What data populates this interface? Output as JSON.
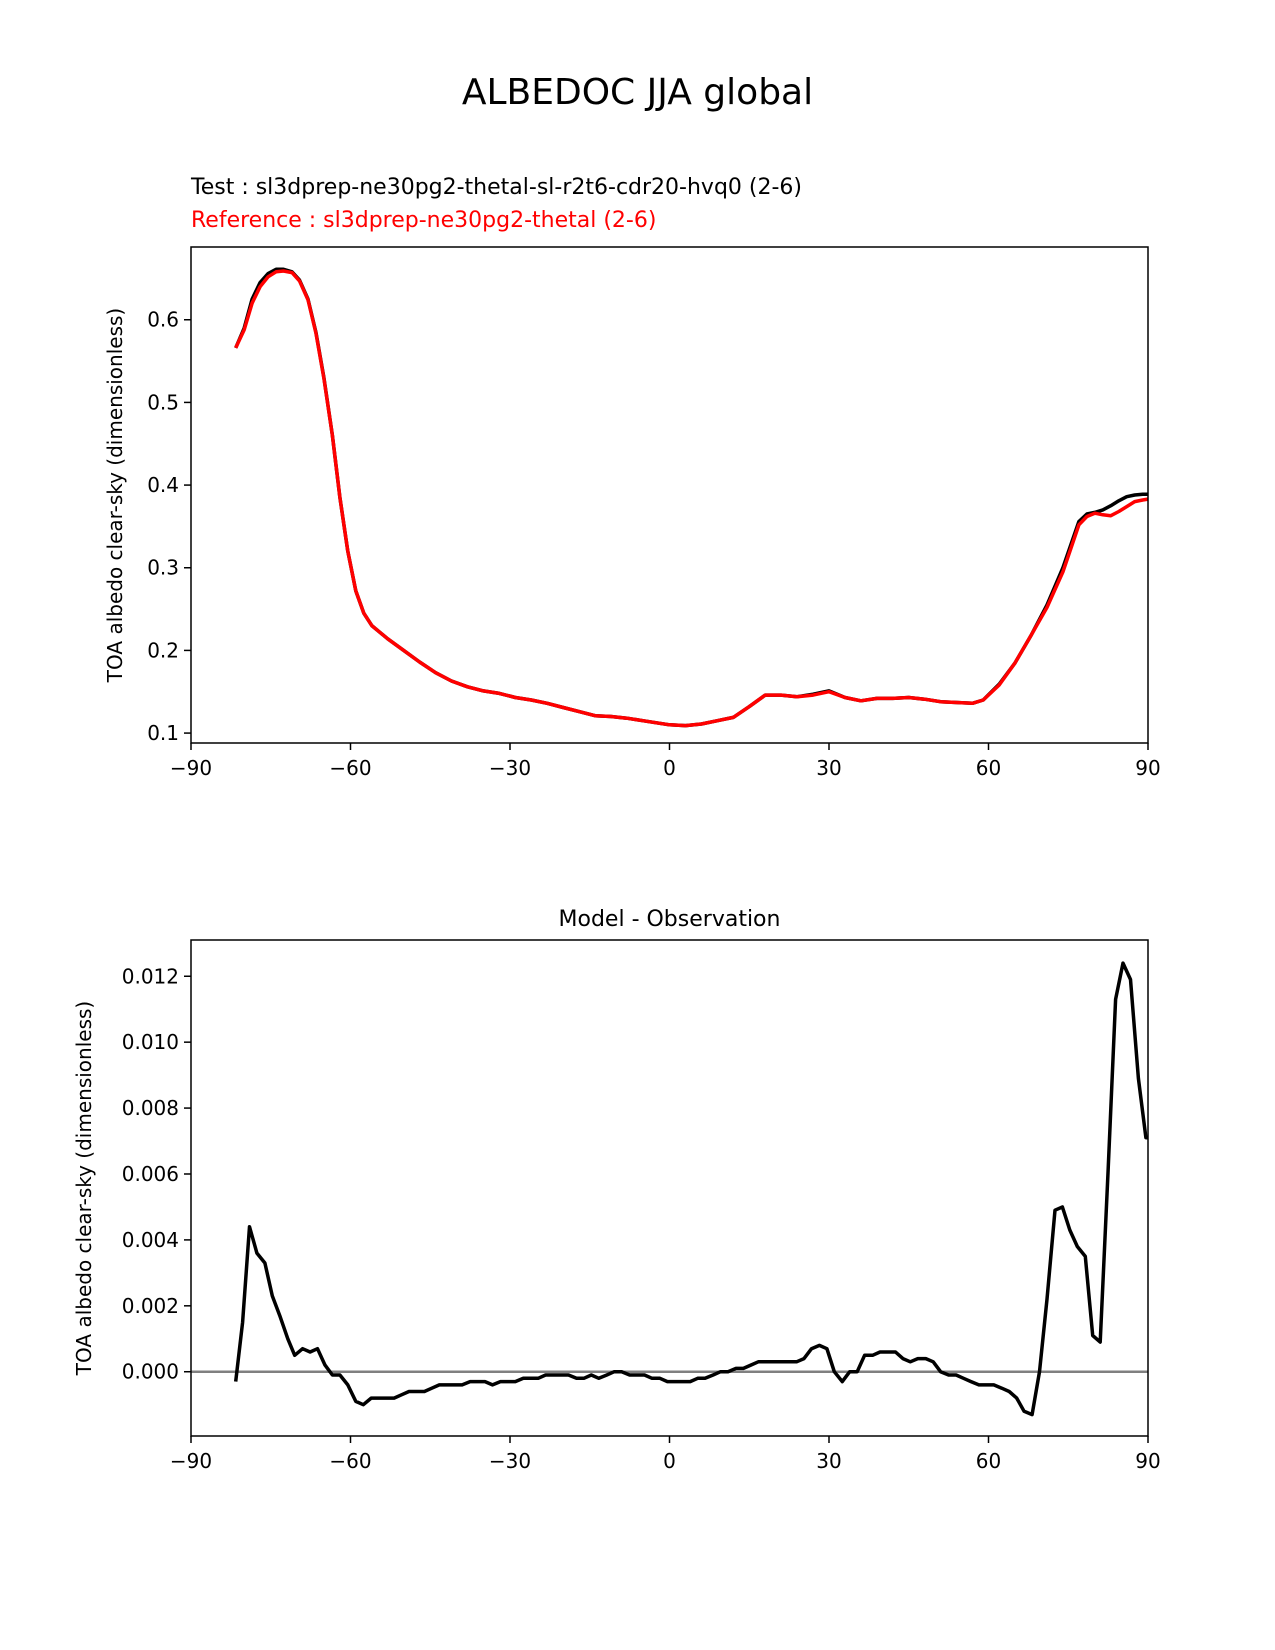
{
  "figure": {
    "title": "ALBEDOC JJA global",
    "test_label": "Test : sl3dprep-ne30pg2-thetal-sl-r2t6-cdr20-hvq0 (2-6)",
    "reference_label": "Reference : sl3dprep-ne30pg2-thetal (2-6)"
  },
  "colors": {
    "test": "#000000",
    "reference": "#ff0000",
    "zero_line": "#808080",
    "axes": "#000000"
  },
  "chart_data": [
    {
      "type": "line",
      "title": "",
      "xlabel": "",
      "ylabel": "TOA albedo clear-sky (dimensionless)",
      "xlim": [
        -90,
        90
      ],
      "ylim": [
        0.088,
        0.688
      ],
      "xticks": [
        -90,
        -60,
        -30,
        0,
        30,
        60,
        90
      ],
      "xtick_labels": [
        "−90",
        "−60",
        "−30",
        "0",
        "30",
        "60",
        "90"
      ],
      "yticks": [
        0.1,
        0.2,
        0.3,
        0.4,
        0.5,
        0.6
      ],
      "ytick_labels": [
        "0.1",
        "0.2",
        "0.3",
        "0.4",
        "0.5",
        "0.6"
      ],
      "grid": false,
      "series": [
        {
          "role": "test",
          "x": [
            -81.6,
            -80,
            -78.5,
            -77,
            -75.5,
            -74,
            -72.6,
            -71,
            -69.6,
            -68,
            -66.5,
            -65,
            -63.4,
            -62,
            -60.5,
            -59,
            -57.5,
            -56,
            -54.5,
            -53,
            -50,
            -47,
            -44,
            -41,
            -38,
            -35,
            -32,
            -29,
            -26,
            -23,
            -20,
            -17,
            -14,
            -11,
            -8,
            -5,
            -2,
            0,
            3,
            6,
            9,
            12,
            15,
            18,
            21,
            24,
            27,
            30,
            33,
            36,
            39,
            42,
            45,
            48,
            51,
            54,
            57,
            59,
            62,
            65,
            68,
            71,
            74,
            77,
            78.5,
            80,
            81.5,
            83,
            84.5,
            86,
            87.5,
            89,
            90
          ],
          "y": [
            0.566,
            0.59,
            0.625,
            0.645,
            0.656,
            0.661,
            0.661,
            0.658,
            0.648,
            0.625,
            0.585,
            0.53,
            0.46,
            0.385,
            0.32,
            0.272,
            0.245,
            0.23,
            0.222,
            0.214,
            0.2,
            0.186,
            0.173,
            0.163,
            0.156,
            0.151,
            0.148,
            0.143,
            0.14,
            0.136,
            0.131,
            0.126,
            0.121,
            0.12,
            0.118,
            0.115,
            0.112,
            0.11,
            0.109,
            0.111,
            0.115,
            0.119,
            0.132,
            0.146,
            0.146,
            0.144,
            0.147,
            0.151,
            0.143,
            0.139,
            0.142,
            0.142,
            0.143,
            0.141,
            0.138,
            0.137,
            0.136,
            0.14,
            0.159,
            0.185,
            0.218,
            0.255,
            0.3,
            0.356,
            0.365,
            0.367,
            0.37,
            0.375,
            0.381,
            0.386,
            0.388,
            0.389,
            0.389
          ]
        },
        {
          "role": "reference",
          "x": [
            -81.6,
            -80,
            -78.5,
            -77,
            -75.5,
            -74,
            -72.6,
            -71,
            -69.6,
            -68,
            -66.5,
            -65,
            -63.4,
            -62,
            -60.5,
            -59,
            -57.5,
            -56,
            -54.5,
            -53,
            -50,
            -47,
            -44,
            -41,
            -38,
            -35,
            -32,
            -29,
            -26,
            -23,
            -20,
            -17,
            -14,
            -11,
            -8,
            -5,
            -2,
            0,
            3,
            6,
            9,
            12,
            15,
            18,
            21,
            24,
            27,
            30,
            33,
            36,
            39,
            42,
            45,
            48,
            51,
            54,
            57,
            59,
            62,
            65,
            68,
            71,
            74,
            77,
            78.5,
            80,
            81.5,
            83,
            84.5,
            86,
            87.5,
            89,
            90
          ],
          "y": [
            0.566,
            0.588,
            0.62,
            0.64,
            0.652,
            0.658,
            0.659,
            0.657,
            0.647,
            0.624,
            0.584,
            0.529,
            0.46,
            0.385,
            0.32,
            0.272,
            0.245,
            0.23,
            0.222,
            0.214,
            0.2,
            0.186,
            0.173,
            0.163,
            0.156,
            0.151,
            0.148,
            0.143,
            0.14,
            0.136,
            0.131,
            0.126,
            0.121,
            0.12,
            0.118,
            0.115,
            0.112,
            0.11,
            0.109,
            0.111,
            0.115,
            0.119,
            0.132,
            0.146,
            0.146,
            0.144,
            0.146,
            0.15,
            0.143,
            0.139,
            0.142,
            0.142,
            0.143,
            0.141,
            0.138,
            0.137,
            0.136,
            0.14,
            0.158,
            0.185,
            0.218,
            0.252,
            0.295,
            0.352,
            0.362,
            0.366,
            0.364,
            0.363,
            0.368,
            0.374,
            0.38,
            0.382,
            0.383
          ]
        }
      ]
    },
    {
      "type": "line",
      "title": "Model - Observation",
      "xlabel": "",
      "ylabel": "TOA albedo clear-sky (dimensionless)",
      "xlim": [
        -90,
        90
      ],
      "ylim": [
        -0.00195,
        0.0131
      ],
      "xticks": [
        -90,
        -60,
        -30,
        0,
        30,
        60,
        90
      ],
      "xtick_labels": [
        "−90",
        "−60",
        "−30",
        "0",
        "30",
        "60",
        "90"
      ],
      "yticks": [
        0.0,
        0.002,
        0.004,
        0.006,
        0.008,
        0.01,
        0.012
      ],
      "ytick_labels": [
        "0.000",
        "0.002",
        "0.004",
        "0.006",
        "0.008",
        "0.010",
        "0.012"
      ],
      "grid": false,
      "zero_line": 0,
      "series": [
        {
          "role": "difference",
          "x": [
            -81.6,
            -80.3,
            -79,
            -77.6,
            -76.1,
            -74.7,
            -73.3,
            -71.8,
            -70.5,
            -69,
            -67.6,
            -66.2,
            -64.8,
            -63.4,
            -62,
            -60.5,
            -59,
            -57.6,
            -56.1,
            -54.7,
            -53.3,
            -51.8,
            -50.4,
            -49,
            -47.5,
            -46.1,
            -44.7,
            -43.3,
            -41.8,
            -40.4,
            -39,
            -37.5,
            -36.1,
            -34.7,
            -33.3,
            -31.8,
            -30.4,
            -29,
            -27.5,
            -26.1,
            -24.7,
            -23.3,
            -21.8,
            -20.4,
            -19,
            -17.5,
            -16.1,
            -14.7,
            -13.3,
            -11.8,
            -10.4,
            -9,
            -7.5,
            -6.1,
            -4.7,
            -3.3,
            -1.8,
            -0.4,
            1,
            2.5,
            3.9,
            5.3,
            6.7,
            8.2,
            9.6,
            11,
            12.5,
            13.9,
            15.3,
            16.7,
            18.2,
            19.6,
            21,
            22.5,
            23.9,
            25.3,
            26.7,
            28.2,
            29.6,
            31,
            32.5,
            33.9,
            35.3,
            36.7,
            38.2,
            39.6,
            41,
            42.5,
            43.9,
            45.3,
            46.7,
            48.2,
            49.6,
            51,
            52.5,
            53.9,
            55.3,
            56.7,
            58.2,
            59.6,
            61,
            62.5,
            63.9,
            65.3,
            66.7,
            68.2,
            69.6,
            71,
            72.5,
            73.9,
            75.3,
            76.7,
            78.2,
            79.6,
            81,
            82.5,
            83.9,
            85.3,
            86.7,
            88.2,
            89.6,
            90
          ],
          "y": [
            -0.0003,
            0.0015,
            0.0044,
            0.0036,
            0.0033,
            0.0023,
            0.0017,
            0.001,
            0.0005,
            0.0007,
            0.0006,
            0.0007,
            0.0002,
            -0.0001,
            -0.0001,
            -0.0004,
            -0.0009,
            -0.001,
            -0.0008,
            -0.0008,
            -0.0008,
            -0.0008,
            -0.0007,
            -0.0006,
            -0.0006,
            -0.0006,
            -0.0005,
            -0.0004,
            -0.0004,
            -0.0004,
            -0.0004,
            -0.0003,
            -0.0003,
            -0.0003,
            -0.0004,
            -0.0003,
            -0.0003,
            -0.0003,
            -0.0002,
            -0.0002,
            -0.0002,
            -0.0001,
            -0.0001,
            -0.0001,
            -0.0001,
            -0.0002,
            -0.0002,
            -0.0001,
            -0.0002,
            -0.0001,
            0,
            0,
            -0.0001,
            -0.0001,
            -0.0001,
            -0.0002,
            -0.0002,
            -0.0003,
            -0.0003,
            -0.0003,
            -0.0003,
            -0.0002,
            -0.0002,
            -0.0001,
            0,
            0,
            0.0001,
            0.0001,
            0.0002,
            0.0003,
            0.0003,
            0.0003,
            0.0003,
            0.0003,
            0.0003,
            0.0004,
            0.0007,
            0.0008,
            0.0007,
            0,
            -0.0003,
            0,
            0,
            0.0005,
            0.0005,
            0.0006,
            0.0006,
            0.0006,
            0.0004,
            0.0003,
            0.0004,
            0.0004,
            0.0003,
            0,
            -0.0001,
            -0.0001,
            -0.0002,
            -0.0003,
            -0.0004,
            -0.0004,
            -0.0004,
            -0.0005,
            -0.0006,
            -0.0008,
            -0.0012,
            -0.0013,
            0,
            0.0022,
            0.0049,
            0.005,
            0.0043,
            0.0038,
            0.0035,
            0.0011,
            0.0009,
            0.0061,
            0.0113,
            0.0124,
            0.0119,
            0.0089,
            0.0071,
            0.0071
          ]
        }
      ]
    }
  ]
}
